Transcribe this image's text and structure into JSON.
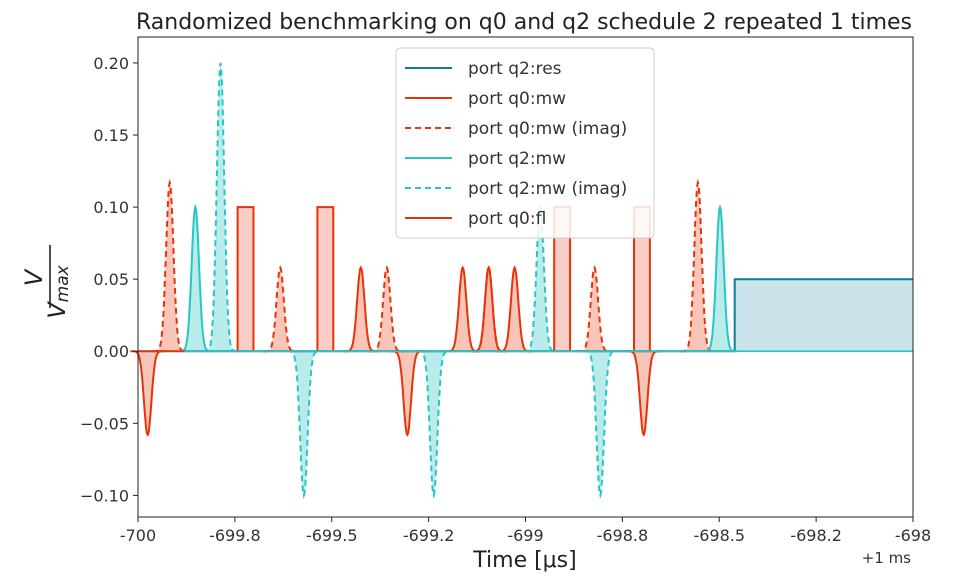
{
  "chart_data": {
    "type": "line",
    "title": "Randomized benchmarking on q0 and q2 schedule 2 repeated 1 times",
    "xlabel": "Time [μs]",
    "ylabel": "V/V_max",
    "ylabel_num": "V",
    "ylabel_den": "V",
    "ylabel_den_sub": "max",
    "x_offset_label": "+1 ms",
    "xlim": [
      -700.0,
      -698.0
    ],
    "ylim": [
      -0.115,
      0.218
    ],
    "x_tick_labels": [
      "-700",
      "-699.8",
      "-699.5",
      "-699.2",
      "-699",
      "-698.8",
      "-698.5",
      "-698.2",
      "-698"
    ],
    "y_ticks": [
      -0.1,
      -0.05,
      0.0,
      0.05,
      0.1,
      0.15,
      0.2
    ],
    "y_tick_labels": [
      "−0.10",
      "−0.05",
      "0.00",
      "0.05",
      "0.10",
      "0.15",
      "0.20"
    ],
    "grid": false,
    "legend_position": "top-center",
    "series": [
      {
        "name": "port q2:res",
        "color": "#0e7f96",
        "dash": "solid",
        "fill": "#b9dbe6",
        "kind": "segments",
        "segments": [
          {
            "x0": -700.0,
            "x1": -698.46,
            "y": 0.0
          },
          {
            "x0": -698.46,
            "x1": -698.0,
            "y": 0.05
          }
        ]
      },
      {
        "name": "port q0:mw",
        "color": "#e83309",
        "dash": "solid",
        "fill": "#f7b7a8",
        "kind": "pulses",
        "pulses": [
          {
            "x": -699.975,
            "amp": -0.058
          },
          {
            "x": -699.305,
            "amp": -0.058
          },
          {
            "x": -698.695,
            "amp": -0.058
          },
          {
            "x": -699.425,
            "amp": 0.058
          },
          {
            "x": -699.162,
            "amp": 0.058
          },
          {
            "x": -699.095,
            "amp": 0.058
          },
          {
            "x": -699.028,
            "amp": 0.058
          }
        ]
      },
      {
        "name": "port q0:mw (imag)",
        "color": "#e83309",
        "dash": "dashed",
        "fill": "#f7b7a8",
        "kind": "pulses",
        "pulses": [
          {
            "x": -699.918,
            "amp": 0.117
          },
          {
            "x": -699.633,
            "amp": 0.058
          },
          {
            "x": -699.358,
            "amp": 0.058
          },
          {
            "x": -699.095,
            "amp": 0.058
          },
          {
            "x": -698.822,
            "amp": 0.058
          },
          {
            "x": -698.555,
            "amp": 0.117
          }
        ]
      },
      {
        "name": "port q2:mw",
        "color": "#26c6c6",
        "dash": "solid",
        "fill": "#a7e6e6",
        "kind": "pulses",
        "pulses": [
          {
            "x": -699.852,
            "amp": 0.1
          },
          {
            "x": -698.498,
            "amp": 0.1
          }
        ]
      },
      {
        "name": "port q2:mw (imag)",
        "color": "#26c6c6",
        "dash": "dashed",
        "fill": "#a7e6e6",
        "kind": "pulses",
        "pulses": [
          {
            "x": -699.787,
            "amp": 0.2
          },
          {
            "x": -699.572,
            "amp": -0.1
          },
          {
            "x": -699.237,
            "amp": -0.1
          },
          {
            "x": -698.962,
            "amp": 0.1
          },
          {
            "x": -698.807,
            "amp": -0.1
          }
        ]
      },
      {
        "name": "port q0:fl",
        "color": "#e83309",
        "dash": "solid",
        "fill": "#f7c6bc",
        "kind": "rects",
        "rects": [
          {
            "x0": -699.743,
            "x1": -699.702,
            "amp": 0.1
          },
          {
            "x0": -699.537,
            "x1": -699.496,
            "amp": 0.1
          },
          {
            "x0": -698.926,
            "x1": -698.885,
            "amp": 0.1
          },
          {
            "x0": -698.72,
            "x1": -698.679,
            "amp": 0.1
          }
        ]
      }
    ]
  }
}
